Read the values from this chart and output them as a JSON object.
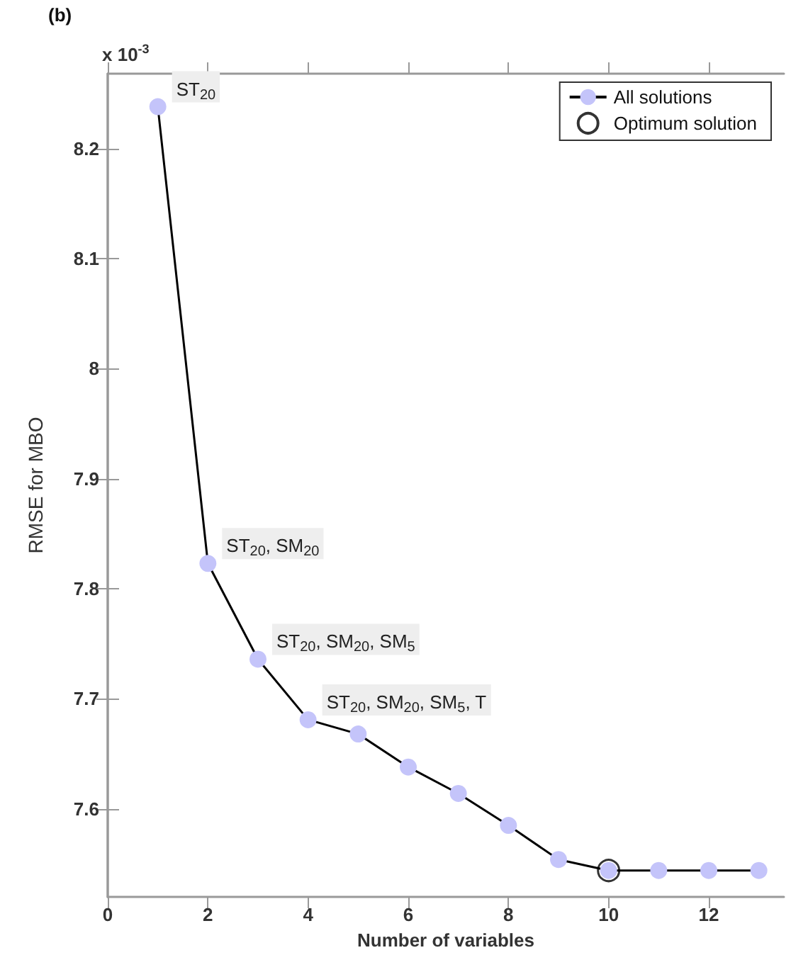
{
  "chart_data": {
    "type": "line",
    "xlabel": "Number of variables",
    "ylabel": "RMSE for MBO",
    "x": [
      1,
      2,
      3,
      4,
      5,
      6,
      7,
      8,
      9,
      10,
      11,
      12,
      13
    ],
    "series": [
      {
        "name": "All solutions",
        "color": "#c4c4fa",
        "values": [
          8.238,
          7.823,
          7.736,
          7.681,
          7.668,
          7.638,
          7.614,
          7.585,
          7.554,
          7.544,
          7.544,
          7.544,
          7.544
        ]
      },
      {
        "name": "Optimum solution",
        "type": "scatter",
        "color": "#000000",
        "x": [
          10
        ],
        "values": [
          7.544
        ]
      }
    ],
    "xlim": [
      0,
      13.5
    ],
    "xticks": [
      0,
      2,
      4,
      6,
      8,
      10,
      12
    ],
    "ylim": [
      7.52,
      8.268
    ],
    "yticks": [
      7.6,
      7.7,
      7.8,
      7.9,
      8,
      8.1,
      8.2
    ],
    "marker": "circle",
    "line_style": "solid",
    "grid": false,
    "legend": "top right",
    "annotations": [
      "(b)",
      "x 10$^{-3}$",
      {
        "text": "ST$_{20}$",
        "x": 1,
        "y": 8.238
      },
      {
        "text": "ST$_{20}$, SM$_{20}$",
        "x": 2,
        "y": 7.823
      },
      {
        "text": "ST$_{20}$, SM$_{20}$, SM$_{5}$",
        "x": 3,
        "y": 7.736
      },
      {
        "text": "ST$_{20}$, SM$_{20}$, SM$_{5}$, T",
        "x": 4,
        "y": 7.681
      }
    ]
  }
}
